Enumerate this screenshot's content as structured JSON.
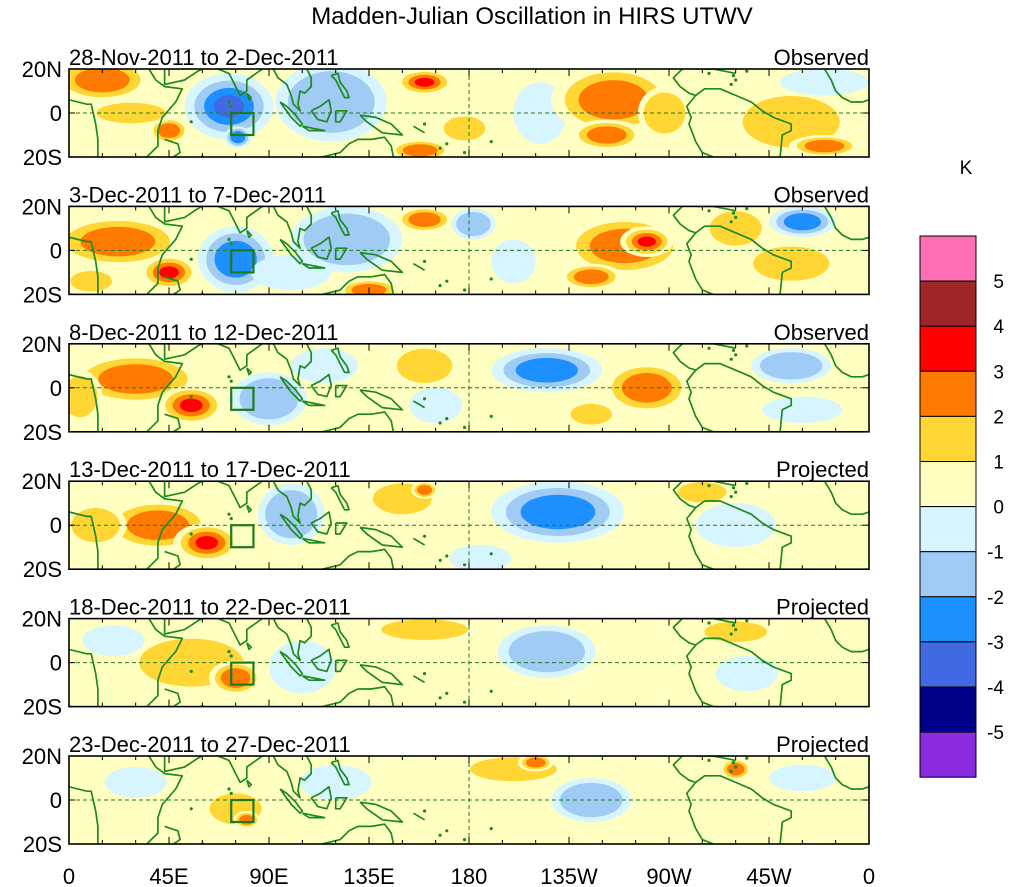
{
  "chart_data": {
    "type": "heatmap",
    "title": "Madden-Julian Oscillation in HIRS UTWV",
    "colorbar": {
      "unit": "K",
      "levels": [
        "5",
        "4",
        "3",
        "2",
        "1",
        "0",
        "-1",
        "-2",
        "-3",
        "-4",
        "-5"
      ],
      "colors": [
        "#ff6fb4",
        "#9e2626",
        "#ff0000",
        "#ff7a00",
        "#ffd633",
        "#ffffc2",
        "#d6f5ff",
        "#9fcbf4",
        "#1e8fff",
        "#4169e1",
        "#00008b",
        "#8a2be2"
      ]
    },
    "x_ticks": [
      "0",
      "45E",
      "90E",
      "135E",
      "180",
      "135W",
      "90W",
      "45W",
      "0"
    ],
    "y_ticks": [
      "20N",
      "0",
      "20S"
    ],
    "xlim": [
      0,
      360
    ],
    "ylim": [
      -20,
      20
    ],
    "panels": [
      {
        "date_range": "28-Nov-2011 to 2-Dec-2011",
        "status": "Observed",
        "blobs": [
          {
            "lon": 15,
            "lat": 15,
            "rx": 22,
            "ry": 10,
            "v": 2.3
          },
          {
            "lon": 45,
            "lat": -8,
            "rx": 9,
            "ry": 6,
            "v": 2.5
          },
          {
            "lon": 28,
            "lat": 0,
            "rx": 20,
            "ry": 6,
            "v": 1.3
          },
          {
            "lon": 72,
            "lat": 3,
            "rx": 20,
            "ry": 15,
            "v": -3.2
          },
          {
            "lon": 76,
            "lat": -11,
            "rx": 6,
            "ry": 5,
            "v": -2.8
          },
          {
            "lon": 118,
            "lat": 5,
            "rx": 25,
            "ry": 18,
            "v": -1.2
          },
          {
            "lon": 160,
            "lat": 14,
            "rx": 13,
            "ry": 6,
            "v": 3.0
          },
          {
            "lon": 158,
            "lat": -17,
            "rx": 14,
            "ry": 5,
            "v": 2.6
          },
          {
            "lon": 178,
            "lat": -7,
            "rx": 12,
            "ry": 7,
            "v": 1.3
          },
          {
            "lon": 212,
            "lat": 0,
            "rx": 12,
            "ry": 14,
            "v": -1.0
          },
          {
            "lon": 245,
            "lat": 6,
            "rx": 28,
            "ry": 16,
            "v": 2.4
          },
          {
            "lon": 242,
            "lat": -10,
            "rx": 16,
            "ry": 7,
            "v": 2.6
          },
          {
            "lon": 268,
            "lat": 0,
            "rx": 12,
            "ry": 12,
            "v": 1.4
          },
          {
            "lon": 325,
            "lat": -4,
            "rx": 28,
            "ry": 15,
            "v": 1.7
          },
          {
            "lon": 340,
            "lat": -15,
            "rx": 16,
            "ry": 5,
            "v": 2.2
          },
          {
            "lon": 340,
            "lat": 14,
            "rx": 20,
            "ry": 6,
            "v": -1.0
          }
        ]
      },
      {
        "date_range": "3-Dec-2011 to 7-Dec-2011",
        "status": "Observed",
        "blobs": [
          {
            "lon": 22,
            "lat": 4,
            "rx": 30,
            "ry": 12,
            "v": 2.6
          },
          {
            "lon": 45,
            "lat": -10,
            "rx": 13,
            "ry": 8,
            "v": 3.0
          },
          {
            "lon": 10,
            "lat": -14,
            "rx": 12,
            "ry": 6,
            "v": 1.3
          },
          {
            "lon": 75,
            "lat": -4,
            "rx": 17,
            "ry": 15,
            "v": -2.5
          },
          {
            "lon": 100,
            "lat": -10,
            "rx": 18,
            "ry": 8,
            "v": -1.0
          },
          {
            "lon": 125,
            "lat": 5,
            "rx": 25,
            "ry": 15,
            "v": -1.1
          },
          {
            "lon": 160,
            "lat": 14,
            "rx": 13,
            "ry": 6,
            "v": 2.7
          },
          {
            "lon": 135,
            "lat": -18,
            "rx": 14,
            "ry": 5,
            "v": 2.0
          },
          {
            "lon": 182,
            "lat": 12,
            "rx": 10,
            "ry": 7,
            "v": -1.2
          },
          {
            "lon": 200,
            "lat": -5,
            "rx": 10,
            "ry": 10,
            "v": -1.0
          },
          {
            "lon": 250,
            "lat": 2,
            "rx": 28,
            "ry": 14,
            "v": 2.4
          },
          {
            "lon": 260,
            "lat": 4,
            "rx": 12,
            "ry": 7,
            "v": 3.2
          },
          {
            "lon": 235,
            "lat": -12,
            "rx": 14,
            "ry": 6,
            "v": 2.0
          },
          {
            "lon": 300,
            "lat": 10,
            "rx": 15,
            "ry": 10,
            "v": 1.5
          },
          {
            "lon": 330,
            "lat": 13,
            "rx": 15,
            "ry": 7,
            "v": -2.2
          },
          {
            "lon": 325,
            "lat": -6,
            "rx": 22,
            "ry": 10,
            "v": 1.4
          }
        ]
      },
      {
        "date_range": "8-Dec-2011 to 12-Dec-2011",
        "status": "Observed",
        "blobs": [
          {
            "lon": 30,
            "lat": 4,
            "rx": 30,
            "ry": 12,
            "v": 2.7
          },
          {
            "lon": 55,
            "lat": -8,
            "rx": 15,
            "ry": 9,
            "v": 3.1
          },
          {
            "lon": 5,
            "lat": -4,
            "rx": 10,
            "ry": 12,
            "v": 1.6
          },
          {
            "lon": 90,
            "lat": -5,
            "rx": 17,
            "ry": 12,
            "v": -1.8
          },
          {
            "lon": 115,
            "lat": 10,
            "rx": 15,
            "ry": 8,
            "v": -1.0
          },
          {
            "lon": 160,
            "lat": 10,
            "rx": 16,
            "ry": 10,
            "v": 1.8
          },
          {
            "lon": 165,
            "lat": -8,
            "rx": 12,
            "ry": 8,
            "v": -1.0
          },
          {
            "lon": 215,
            "lat": 8,
            "rx": 25,
            "ry": 10,
            "v": -2.2
          },
          {
            "lon": 260,
            "lat": 0,
            "rx": 20,
            "ry": 12,
            "v": 2.2
          },
          {
            "lon": 235,
            "lat": -12,
            "rx": 12,
            "ry": 6,
            "v": 1.0
          },
          {
            "lon": 325,
            "lat": 10,
            "rx": 18,
            "ry": 8,
            "v": -1.8
          },
          {
            "lon": 330,
            "lat": -10,
            "rx": 18,
            "ry": 6,
            "v": -0.5
          }
        ]
      },
      {
        "date_range": "13-Dec-2011 to 17-Dec-2011",
        "status": "Projected",
        "blobs": [
          {
            "lon": 40,
            "lat": 0,
            "rx": 25,
            "ry": 12,
            "v": 2.2
          },
          {
            "lon": 62,
            "lat": -8,
            "rx": 15,
            "ry": 9,
            "v": 3.0
          },
          {
            "lon": 12,
            "lat": 0,
            "rx": 14,
            "ry": 10,
            "v": 1.1
          },
          {
            "lon": 100,
            "lat": 5,
            "rx": 15,
            "ry": 14,
            "v": -1.1
          },
          {
            "lon": 150,
            "lat": 12,
            "rx": 17,
            "ry": 9,
            "v": 1.5
          },
          {
            "lon": 160,
            "lat": 16,
            "rx": 6,
            "ry": 4,
            "v": 2.2
          },
          {
            "lon": 220,
            "lat": 6,
            "rx": 30,
            "ry": 14,
            "v": -2.1
          },
          {
            "lon": 185,
            "lat": -15,
            "rx": 14,
            "ry": 6,
            "v": -1.0
          },
          {
            "lon": 285,
            "lat": 15,
            "rx": 14,
            "ry": 6,
            "v": 1.5
          },
          {
            "lon": 300,
            "lat": 0,
            "rx": 18,
            "ry": 10,
            "v": -1.0
          },
          {
            "lon": 340,
            "lat": -8,
            "rx": 14,
            "ry": 6,
            "v": 0.6
          }
        ]
      },
      {
        "date_range": "18-Dec-2011 to 22-Dec-2011",
        "status": "Projected",
        "blobs": [
          {
            "lon": 55,
            "lat": 0,
            "rx": 30,
            "ry": 14,
            "v": 1.4
          },
          {
            "lon": 75,
            "lat": -7,
            "rx": 12,
            "ry": 8,
            "v": 2.2
          },
          {
            "lon": 20,
            "lat": 10,
            "rx": 14,
            "ry": 7,
            "v": -1.0
          },
          {
            "lon": 105,
            "lat": -2,
            "rx": 15,
            "ry": 12,
            "v": -1.0
          },
          {
            "lon": 160,
            "lat": 15,
            "rx": 25,
            "ry": 6,
            "v": 1.3
          },
          {
            "lon": 215,
            "lat": 5,
            "rx": 22,
            "ry": 12,
            "v": -1.8
          },
          {
            "lon": 240,
            "lat": -10,
            "rx": 14,
            "ry": 6,
            "v": 0.6
          },
          {
            "lon": 300,
            "lat": 14,
            "rx": 18,
            "ry": 6,
            "v": 1.2
          },
          {
            "lon": 305,
            "lat": -5,
            "rx": 14,
            "ry": 8,
            "v": -1.0
          }
        ]
      },
      {
        "date_range": "23-Dec-2011 to 27-Dec-2011",
        "status": "Projected",
        "blobs": [
          {
            "lon": 75,
            "lat": -4,
            "rx": 15,
            "ry": 9,
            "v": 1.3
          },
          {
            "lon": 80,
            "lat": -9,
            "rx": 6,
            "ry": 4,
            "v": 2.2
          },
          {
            "lon": 30,
            "lat": 8,
            "rx": 14,
            "ry": 7,
            "v": -1.0
          },
          {
            "lon": 120,
            "lat": 8,
            "rx": 16,
            "ry": 8,
            "v": -1.0
          },
          {
            "lon": 200,
            "lat": 14,
            "rx": 25,
            "ry": 7,
            "v": 1.4
          },
          {
            "lon": 210,
            "lat": 17,
            "rx": 8,
            "ry": 4,
            "v": 2.2
          },
          {
            "lon": 235,
            "lat": 0,
            "rx": 18,
            "ry": 10,
            "v": -2.0
          },
          {
            "lon": 300,
            "lat": 14,
            "rx": 7,
            "ry": 5,
            "v": 2.1
          },
          {
            "lon": 330,
            "lat": 10,
            "rx": 15,
            "ry": 6,
            "v": -1.0
          },
          {
            "lon": 310,
            "lat": -10,
            "rx": 14,
            "ry": 7,
            "v": 0.6
          }
        ]
      }
    ]
  }
}
